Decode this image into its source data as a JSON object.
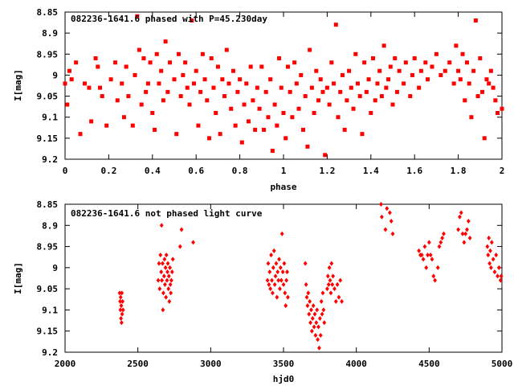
{
  "chart_data": [
    {
      "type": "scatter",
      "title": "082236-1641.6 phased with P=45.230day",
      "xlabel": "phase",
      "ylabel": "I[mag]",
      "xlim": [
        0,
        2
      ],
      "ylim": [
        9.2,
        8.85
      ],
      "y_inverted": true,
      "grid": false,
      "xticks": [
        "0",
        "0.2",
        "0.4",
        "0.6",
        "0.8",
        "1",
        "1.2",
        "1.4",
        "1.6",
        "1.8",
        "2"
      ],
      "xtick_values": [
        0,
        0.2,
        0.4,
        0.6,
        0.8,
        1,
        1.2,
        1.4,
        1.6,
        1.8,
        2
      ],
      "yticks": [
        "8.85",
        "8.9",
        "8.95",
        "9",
        "9.05",
        "9.1",
        "9.15",
        "9.2"
      ],
      "ytick_values": [
        8.85,
        8.9,
        8.95,
        9,
        9.05,
        9.1,
        9.15,
        9.2
      ],
      "marker_color": "#ff0000",
      "points": [
        [
          0.0,
          9.02
        ],
        [
          0.01,
          9.07
        ],
        [
          0.02,
          8.99
        ],
        [
          0.03,
          9.01
        ],
        [
          0.05,
          8.97
        ],
        [
          0.07,
          9.14
        ],
        [
          0.09,
          9.02
        ],
        [
          0.11,
          9.03
        ],
        [
          0.12,
          9.11
        ],
        [
          0.14,
          8.96
        ],
        [
          0.15,
          8.98
        ],
        [
          0.16,
          9.03
        ],
        [
          0.17,
          9.05
        ],
        [
          0.19,
          9.12
        ],
        [
          0.21,
          9.01
        ],
        [
          0.23,
          8.97
        ],
        [
          0.24,
          9.06
        ],
        [
          0.26,
          9.02
        ],
        [
          0.27,
          9.1
        ],
        [
          0.28,
          8.98
        ],
        [
          0.29,
          9.05
        ],
        [
          0.31,
          9.12
        ],
        [
          0.32,
          9.0
        ],
        [
          0.33,
          8.86
        ],
        [
          0.34,
          8.94
        ],
        [
          0.35,
          9.07
        ],
        [
          0.36,
          8.96
        ],
        [
          0.37,
          9.04
        ],
        [
          0.38,
          9.02
        ],
        [
          0.39,
          8.97
        ],
        [
          0.4,
          9.09
        ],
        [
          0.41,
          9.13
        ],
        [
          0.42,
          8.95
        ],
        [
          0.43,
          9.02
        ],
        [
          0.44,
          8.99
        ],
        [
          0.45,
          9.06
        ],
        [
          0.46,
          8.92
        ],
        [
          0.47,
          9.04
        ],
        [
          0.48,
          8.97
        ],
        [
          0.5,
          9.01
        ],
        [
          0.51,
          9.14
        ],
        [
          0.52,
          8.95
        ],
        [
          0.53,
          9.05
        ],
        [
          0.54,
          9.0
        ],
        [
          0.55,
          8.97
        ],
        [
          0.56,
          9.03
        ],
        [
          0.57,
          9.07
        ],
        [
          0.58,
          8.87
        ],
        [
          0.59,
          9.02
        ],
        [
          0.6,
          8.99
        ],
        [
          0.61,
          9.12
        ],
        [
          0.62,
          9.04
        ],
        [
          0.63,
          8.95
        ],
        [
          0.64,
          9.01
        ],
        [
          0.65,
          9.06
        ],
        [
          0.66,
          9.15
        ],
        [
          0.67,
          8.96
        ],
        [
          0.68,
          9.03
        ],
        [
          0.69,
          9.09
        ],
        [
          0.7,
          8.98
        ],
        [
          0.71,
          9.14
        ],
        [
          0.72,
          9.01
        ],
        [
          0.73,
          9.05
        ],
        [
          0.74,
          8.94
        ],
        [
          0.75,
          9.02
        ],
        [
          0.76,
          9.08
        ],
        [
          0.77,
          8.99
        ],
        [
          0.78,
          9.12
        ],
        [
          0.79,
          9.04
        ],
        [
          0.8,
          9.01
        ],
        [
          0.81,
          9.16
        ],
        [
          0.82,
          9.07
        ],
        [
          0.83,
          9.02
        ],
        [
          0.84,
          9.11
        ],
        [
          0.85,
          8.98
        ],
        [
          0.86,
          9.06
        ],
        [
          0.87,
          9.13
        ],
        [
          0.88,
          9.03
        ],
        [
          0.89,
          9.08
        ],
        [
          0.9,
          8.98
        ],
        [
          0.91,
          9.13
        ],
        [
          0.92,
          9.04
        ],
        [
          0.93,
          9.1
        ],
        [
          0.94,
          9.01
        ],
        [
          0.95,
          9.18
        ],
        [
          0.96,
          9.07
        ],
        [
          0.97,
          9.12
        ],
        [
          0.98,
          8.96
        ],
        [
          0.99,
          9.03
        ],
        [
          1.0,
          9.09
        ],
        [
          1.01,
          9.15
        ],
        [
          1.02,
          8.98
        ],
        [
          1.03,
          9.04
        ],
        [
          1.04,
          9.1
        ],
        [
          1.05,
          8.97
        ],
        [
          1.06,
          9.02
        ],
        [
          1.07,
          9.08
        ],
        [
          1.08,
          9.0
        ],
        [
          1.09,
          9.13
        ],
        [
          1.1,
          9.05
        ],
        [
          1.11,
          9.17
        ],
        [
          1.12,
          8.94
        ],
        [
          1.13,
          9.03
        ],
        [
          1.14,
          9.09
        ],
        [
          1.15,
          8.99
        ],
        [
          1.16,
          9.06
        ],
        [
          1.17,
          9.01
        ],
        [
          1.18,
          9.04
        ],
        [
          1.19,
          9.19
        ],
        [
          1.2,
          9.03
        ],
        [
          1.21,
          9.07
        ],
        [
          1.22,
          8.97
        ],
        [
          1.23,
          9.02
        ],
        [
          1.24,
          8.88
        ],
        [
          1.25,
          9.1
        ],
        [
          1.26,
          9.04
        ],
        [
          1.27,
          9.0
        ],
        [
          1.28,
          9.13
        ],
        [
          1.29,
          9.06
        ],
        [
          1.3,
          8.99
        ],
        [
          1.31,
          9.03
        ],
        [
          1.32,
          9.08
        ],
        [
          1.33,
          8.95
        ],
        [
          1.34,
          9.02
        ],
        [
          1.35,
          9.05
        ],
        [
          1.36,
          9.14
        ],
        [
          1.37,
          8.97
        ],
        [
          1.38,
          9.04
        ],
        [
          1.39,
          9.01
        ],
        [
          1.4,
          9.09
        ],
        [
          1.41,
          8.96
        ],
        [
          1.42,
          9.06
        ],
        [
          1.43,
          9.02
        ],
        [
          1.44,
          8.99
        ],
        [
          1.45,
          9.05
        ],
        [
          1.46,
          8.93
        ],
        [
          1.47,
          9.03
        ],
        [
          1.48,
          9.01
        ],
        [
          1.49,
          8.98
        ],
        [
          1.5,
          9.07
        ],
        [
          1.51,
          8.96
        ],
        [
          1.52,
          9.04
        ],
        [
          1.53,
          8.99
        ],
        [
          1.55,
          9.02
        ],
        [
          1.56,
          8.97
        ],
        [
          1.58,
          9.05
        ],
        [
          1.59,
          9.0
        ],
        [
          1.6,
          8.96
        ],
        [
          1.62,
          9.03
        ],
        [
          1.63,
          8.99
        ],
        [
          1.65,
          8.97
        ],
        [
          1.66,
          9.01
        ],
        [
          1.68,
          8.98
        ],
        [
          1.7,
          8.95
        ],
        [
          1.72,
          9.0
        ],
        [
          1.74,
          8.99
        ],
        [
          1.76,
          8.97
        ],
        [
          1.78,
          9.02
        ],
        [
          1.79,
          8.93
        ],
        [
          1.8,
          8.99
        ],
        [
          1.81,
          9.01
        ],
        [
          1.82,
          8.95
        ],
        [
          1.83,
          9.06
        ],
        [
          1.84,
          8.97
        ],
        [
          1.85,
          9.02
        ],
        [
          1.86,
          9.1
        ],
        [
          1.87,
          8.99
        ],
        [
          1.88,
          8.87
        ],
        [
          1.89,
          9.05
        ],
        [
          1.9,
          8.96
        ],
        [
          1.91,
          9.04
        ],
        [
          1.92,
          9.15
        ],
        [
          1.93,
          9.01
        ],
        [
          1.94,
          9.02
        ],
        [
          1.95,
          8.99
        ],
        [
          1.96,
          9.03
        ],
        [
          1.97,
          9.06
        ],
        [
          1.98,
          9.09
        ],
        [
          2.0,
          9.08
        ]
      ]
    },
    {
      "type": "scatter",
      "title": "082236-1641.6 not phased light curve",
      "xlabel": "hjd0",
      "ylabel": "I[mag]",
      "xlim": [
        2000,
        5000
      ],
      "ylim": [
        9.2,
        8.85
      ],
      "y_inverted": true,
      "grid": false,
      "xticks": [
        "2000",
        "2500",
        "3000",
        "3500",
        "4000",
        "4500",
        "5000"
      ],
      "xtick_values": [
        2000,
        2500,
        3000,
        3500,
        4000,
        4500,
        5000
      ],
      "yticks": [
        "8.85",
        "8.9",
        "8.95",
        "9",
        "9.05",
        "9.1",
        "9.15",
        "9.2"
      ],
      "ytick_values": [
        8.85,
        8.9,
        8.95,
        9,
        9.05,
        9.1,
        9.15,
        9.2
      ],
      "marker_color": "#ff0000",
      "points": [
        [
          2375,
          9.06
        ],
        [
          2378,
          9.08
        ],
        [
          2380,
          9.1
        ],
        [
          2382,
          9.07
        ],
        [
          2384,
          9.12
        ],
        [
          2386,
          9.09
        ],
        [
          2388,
          9.13
        ],
        [
          2390,
          9.06
        ],
        [
          2392,
          9.11
        ],
        [
          2395,
          9.08
        ],
        [
          2398,
          9.1
        ],
        [
          2640,
          9.03
        ],
        [
          2645,
          8.99
        ],
        [
          2650,
          9.05
        ],
        [
          2655,
          8.97
        ],
        [
          2660,
          9.01
        ],
        [
          2663,
          8.9
        ],
        [
          2665,
          9.03
        ],
        [
          2670,
          8.99
        ],
        [
          2672,
          9.1
        ],
        [
          2675,
          9.06
        ],
        [
          2680,
          9.02
        ],
        [
          2683,
          8.98
        ],
        [
          2686,
          9.04
        ],
        [
          2690,
          9.0
        ],
        [
          2693,
          9.07
        ],
        [
          2696,
          8.97
        ],
        [
          2700,
          9.03
        ],
        [
          2703,
          9.01
        ],
        [
          2706,
          8.99
        ],
        [
          2710,
          9.05
        ],
        [
          2713,
          9.02
        ],
        [
          2716,
          9.08
        ],
        [
          2720,
          9.0
        ],
        [
          2723,
          9.04
        ],
        [
          2726,
          9.06
        ],
        [
          2730,
          9.03
        ],
        [
          2735,
          9.01
        ],
        [
          2740,
          8.98
        ],
        [
          2790,
          8.95
        ],
        [
          2800,
          8.91
        ],
        [
          2880,
          8.94
        ],
        [
          3390,
          9.03
        ],
        [
          3395,
          8.99
        ],
        [
          3400,
          9.04
        ],
        [
          3405,
          9.01
        ],
        [
          3410,
          9.05
        ],
        [
          3415,
          8.97
        ],
        [
          3420,
          9.03
        ],
        [
          3425,
          9.06
        ],
        [
          3430,
          9.0
        ],
        [
          3435,
          8.96
        ],
        [
          3440,
          9.04
        ],
        [
          3445,
          9.02
        ],
        [
          3450,
          8.99
        ],
        [
          3455,
          9.07
        ],
        [
          3460,
          9.01
        ],
        [
          3465,
          9.03
        ],
        [
          3470,
          8.98
        ],
        [
          3475,
          9.05
        ],
        [
          3480,
          9.0
        ],
        [
          3485,
          9.03
        ],
        [
          3490,
          8.92
        ],
        [
          3495,
          9.01
        ],
        [
          3500,
          9.04
        ],
        [
          3505,
          8.99
        ],
        [
          3510,
          9.06
        ],
        [
          3515,
          9.09
        ],
        [
          3520,
          9.03
        ],
        [
          3525,
          9.01
        ],
        [
          3530,
          9.07
        ],
        [
          3650,
          8.99
        ],
        [
          3655,
          9.04
        ],
        [
          3660,
          9.07
        ],
        [
          3665,
          9.09
        ],
        [
          3670,
          9.06
        ],
        [
          3675,
          9.11
        ],
        [
          3680,
          9.08
        ],
        [
          3685,
          9.13
        ],
        [
          3690,
          9.1
        ],
        [
          3695,
          9.15
        ],
        [
          3700,
          9.12
        ],
        [
          3705,
          9.09
        ],
        [
          3710,
          9.14
        ],
        [
          3715,
          9.11
        ],
        [
          3720,
          9.16
        ],
        [
          3725,
          9.13
        ],
        [
          3730,
          9.1
        ],
        [
          3735,
          9.17
        ],
        [
          3740,
          9.14
        ],
        [
          3745,
          9.19
        ],
        [
          3750,
          9.12
        ],
        [
          3755,
          9.16
        ],
        [
          3760,
          9.08
        ],
        [
          3765,
          9.11
        ],
        [
          3770,
          9.06
        ],
        [
          3775,
          9.1
        ],
        [
          3780,
          9.13
        ],
        [
          3800,
          9.05
        ],
        [
          3805,
          9.02
        ],
        [
          3810,
          9.04
        ],
        [
          3815,
          9.0
        ],
        [
          3820,
          9.03
        ],
        [
          3825,
          9.06
        ],
        [
          3830,
          8.99
        ],
        [
          3835,
          9.04
        ],
        [
          3840,
          9.02
        ],
        [
          3850,
          9.05
        ],
        [
          3860,
          9.08
        ],
        [
          3870,
          9.04
        ],
        [
          3880,
          9.07
        ],
        [
          3890,
          9.03
        ],
        [
          3900,
          9.08
        ],
        [
          4170,
          8.85
        ],
        [
          4175,
          8.88
        ],
        [
          4200,
          8.91
        ],
        [
          4210,
          8.86
        ],
        [
          4230,
          8.87
        ],
        [
          4240,
          8.89
        ],
        [
          4250,
          8.92
        ],
        [
          4430,
          8.96
        ],
        [
          4440,
          8.97
        ],
        [
          4450,
          8.97
        ],
        [
          4460,
          8.98
        ],
        [
          4470,
          8.95
        ],
        [
          4480,
          9.0
        ],
        [
          4490,
          8.97
        ],
        [
          4500,
          8.94
        ],
        [
          4510,
          8.97
        ],
        [
          4520,
          8.98
        ],
        [
          4530,
          9.02
        ],
        [
          4540,
          9.03
        ],
        [
          4560,
          9.0
        ],
        [
          4570,
          8.95
        ],
        [
          4580,
          8.94
        ],
        [
          4590,
          8.93
        ],
        [
          4600,
          8.92
        ],
        [
          4700,
          8.91
        ],
        [
          4710,
          8.88
        ],
        [
          4720,
          8.87
        ],
        [
          4730,
          8.92
        ],
        [
          4740,
          8.94
        ],
        [
          4750,
          8.92
        ],
        [
          4760,
          8.91
        ],
        [
          4770,
          8.89
        ],
        [
          4780,
          8.93
        ],
        [
          4900,
          8.95
        ],
        [
          4905,
          8.97
        ],
        [
          4910,
          8.93
        ],
        [
          4915,
          8.99
        ],
        [
          4920,
          8.96
        ],
        [
          4925,
          9.0
        ],
        [
          4930,
          8.94
        ],
        [
          4940,
          8.98
        ],
        [
          4950,
          9.01
        ],
        [
          4960,
          8.97
        ],
        [
          4970,
          9.02
        ],
        [
          4980,
          9.0
        ],
        [
          4990,
          9.03
        ],
        [
          4995,
          9.02
        ]
      ]
    }
  ]
}
